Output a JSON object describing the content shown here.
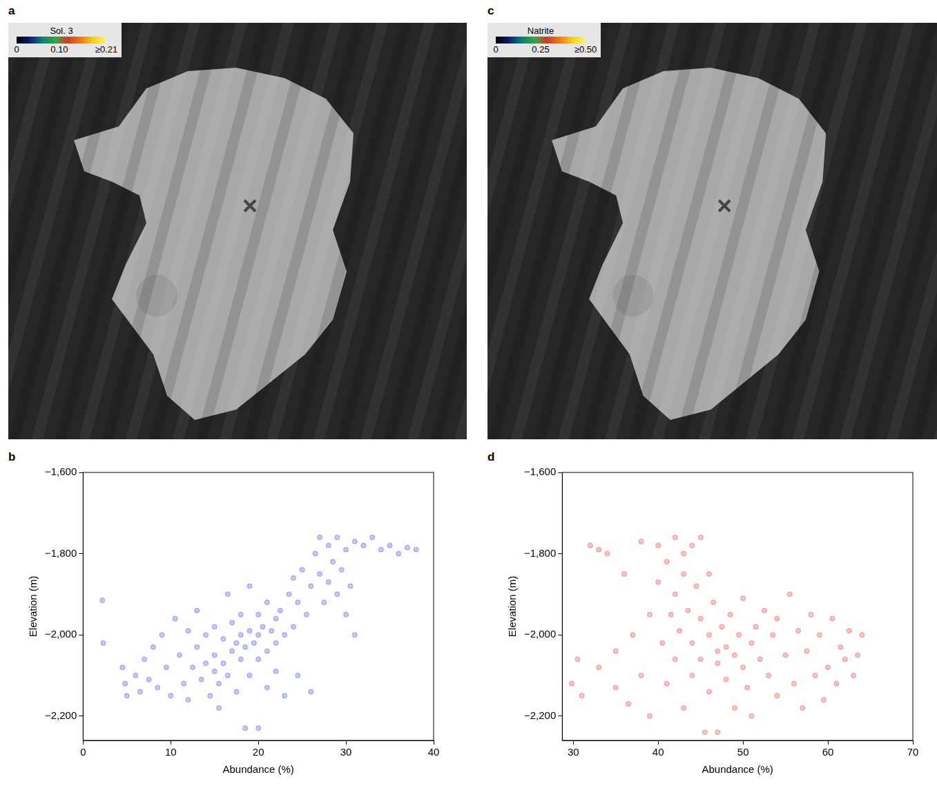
{
  "maps": [
    {
      "letter": "a",
      "colorbar": {
        "title": "Sol. 3",
        "range": [
          0,
          0.21
        ],
        "ticks": [
          0,
          {
            "value": 0.1,
            "label": "0.10"
          },
          {
            "value": 0.21,
            "label": "≥0.21"
          }
        ]
      }
    },
    {
      "letter": "c",
      "colorbar": {
        "title": "Natrite",
        "range": [
          0,
          0.5
        ],
        "ticks": [
          0,
          0.25,
          {
            "value": 0.5,
            "label": "≥0.50"
          }
        ]
      }
    }
  ],
  "chart_data": [
    {
      "letter": "b",
      "type": "scatter",
      "x_label": "Abundance (%)",
      "y_label": "Elevation (m)",
      "color": "#1f1fe0",
      "marker": "circle",
      "grid": false,
      "xlim": [
        0,
        40
      ],
      "xticks": [
        0,
        10,
        20,
        30,
        40
      ],
      "ylim": [
        -2260,
        -1600
      ],
      "yticks": [
        {
          "value": -1600,
          "label": "−1,600"
        },
        {
          "value": -1800,
          "label": "−1,800"
        },
        {
          "value": -2000,
          "label": "−2,000"
        },
        {
          "value": -2200,
          "label": "−2,200"
        }
      ],
      "x": [
        2.2,
        2.3,
        4.5,
        4.8,
        5,
        6,
        6.5,
        7,
        7.5,
        8,
        8.5,
        9,
        9.5,
        10,
        10.5,
        11,
        11.5,
        12,
        12,
        12.5,
        13,
        13,
        13.5,
        14,
        14,
        14.5,
        15,
        15,
        15,
        15.5,
        15.5,
        16,
        16,
        16.5,
        16.5,
        17,
        17,
        17.5,
        17.5,
        18,
        18,
        18,
        18.5,
        18.5,
        19,
        19,
        19,
        19.5,
        20,
        20,
        20,
        20,
        20.5,
        21,
        21,
        21,
        21.5,
        22,
        22,
        22,
        22.5,
        23,
        23,
        23.5,
        24,
        24,
        24.5,
        24.5,
        25,
        25.5,
        26,
        26,
        26.5,
        27,
        27,
        27.5,
        28,
        28,
        28.5,
        29,
        29,
        29.5,
        30,
        30,
        30.5,
        31,
        31,
        32,
        33,
        34,
        35,
        36,
        37,
        38
      ],
      "values": [
        -1915,
        -2020,
        -2080,
        -2120,
        -2150,
        -2100,
        -2140,
        -2060,
        -2110,
        -2030,
        -2130,
        -2000,
        -2080,
        -2150,
        -1960,
        -2050,
        -2120,
        -1990,
        -2160,
        -2080,
        -1940,
        -2030,
        -2110,
        -2000,
        -2070,
        -2150,
        -1980,
        -2050,
        -2090,
        -2120,
        -2180,
        -2010,
        -2070,
        -1900,
        -2100,
        -1970,
        -2040,
        -2020,
        -2140,
        -1950,
        -2000,
        -2060,
        -2030,
        -2230,
        -1880,
        -1990,
        -2100,
        -2020,
        -1950,
        -2000,
        -2060,
        -2230,
        -1980,
        -1920,
        -2040,
        -2130,
        -1990,
        -1960,
        -2020,
        -2090,
        -1940,
        -2000,
        -2150,
        -1900,
        -1860,
        -1980,
        -1920,
        -2100,
        -1840,
        -1950,
        -1880,
        -2140,
        -1800,
        -1760,
        -1850,
        -1920,
        -1780,
        -1870,
        -1820,
        -1760,
        -1900,
        -1840,
        -1790,
        -1950,
        -1880,
        -1770,
        -2000,
        -1780,
        -1760,
        -1790,
        -1780,
        -1800,
        -1785,
        -1790
      ]
    },
    {
      "letter": "d",
      "type": "scatter",
      "x_label": "Abundance (%)",
      "y_label": "Elevation (m)",
      "color": "#ee1111",
      "marker": "circle",
      "grid": false,
      "xlim": [
        28.7,
        70
      ],
      "xticks": [
        30,
        40,
        50,
        60,
        70
      ],
      "ylim": [
        -2260,
        -1600
      ],
      "yticks": [
        {
          "value": -1600,
          "label": "−1,600"
        },
        {
          "value": -1800,
          "label": "−1,800"
        },
        {
          "value": -2000,
          "label": "−2,000"
        },
        {
          "value": -2200,
          "label": "−2,200"
        }
      ],
      "x": [
        29.8,
        30.5,
        31,
        32,
        33,
        33,
        34,
        35,
        35,
        36,
        36.5,
        37,
        38,
        38,
        39,
        39,
        40,
        40,
        40.5,
        41,
        41,
        41.5,
        42,
        42,
        42,
        42.5,
        43,
        43,
        43,
        43.5,
        44,
        44,
        44,
        44.5,
        45,
        45,
        45,
        45.5,
        46,
        46,
        46,
        46.5,
        47,
        47,
        47,
        47.5,
        48,
        48,
        48.5,
        49,
        49,
        49.5,
        50,
        50,
        50.5,
        51,
        51,
        51.5,
        52,
        52.5,
        53,
        53.5,
        54,
        54,
        55,
        55.5,
        56,
        56.5,
        57,
        57.5,
        58,
        58.5,
        59,
        59.5,
        60,
        60.5,
        61,
        61.5,
        62,
        62.5,
        63,
        63.5,
        64
      ],
      "values": [
        -2120,
        -2060,
        -2150,
        -1780,
        -1790,
        -2080,
        -1800,
        -2040,
        -2130,
        -1850,
        -2170,
        -2000,
        -1770,
        -2100,
        -1950,
        -2200,
        -1780,
        -1870,
        -2020,
        -1820,
        -2120,
        -1950,
        -1760,
        -1900,
        -2060,
        -1990,
        -1800,
        -1850,
        -2180,
        -1940,
        -1780,
        -2020,
        -2100,
        -1880,
        -1760,
        -1960,
        -2060,
        -2240,
        -1850,
        -2000,
        -2140,
        -1920,
        -2040,
        -2070,
        -2240,
        -1980,
        -2030,
        -2110,
        -1950,
        -2050,
        -2180,
        -2000,
        -1910,
        -2080,
        -2130,
        -2020,
        -2200,
        -1980,
        -2060,
        -1940,
        -2100,
        -2000,
        -1960,
        -2150,
        -2050,
        -1900,
        -2120,
        -1990,
        -2180,
        -2040,
        -1950,
        -2100,
        -2000,
        -2160,
        -2080,
        -1960,
        -2120,
        -2030,
        -2060,
        -1990,
        -2100,
        -2050,
        -2000
      ]
    }
  ]
}
